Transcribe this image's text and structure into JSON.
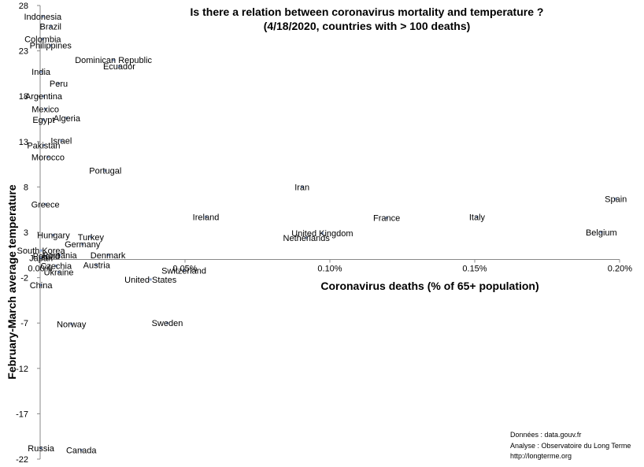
{
  "chart_data": {
    "type": "scatter",
    "title": "Is there a relation between coronavirus mortality and temperature ?",
    "subtitle": "(4/18/2020, countries with > 100 deaths)",
    "xlabel": "Coronavirus deaths (% of 65+ population)",
    "ylabel": "February-March average temperature",
    "xlim": [
      0,
      0.2
    ],
    "ylim": [
      -22,
      28
    ],
    "x_ticks": [
      0,
      0.05,
      0.1,
      0.15,
      0.2
    ],
    "x_tick_labels": [
      "0.00%",
      "0.05%",
      "0.10%",
      "0.15%",
      "0.20%"
    ],
    "y_ticks": [
      -22,
      -17,
      -12,
      -7,
      -2,
      3,
      8,
      13,
      18,
      23,
      28
    ],
    "y_tick_labels": [
      "-22",
      "-17",
      "-12",
      "-7",
      "-2",
      "3",
      "8",
      "13",
      "18",
      "23",
      "28"
    ],
    "points": [
      {
        "label": "Indonesia",
        "x": 0.0009,
        "y": 26.8
      },
      {
        "label": "Brazil",
        "x": 0.0036,
        "y": 25.7
      },
      {
        "label": "Colombia",
        "x": 0.0009,
        "y": 24.3
      },
      {
        "label": "Philippines",
        "x": 0.0036,
        "y": 23.6
      },
      {
        "label": "Dominican Republic",
        "x": 0.0253,
        "y": 22.0
      },
      {
        "label": "Ecuador",
        "x": 0.0273,
        "y": 21.3
      },
      {
        "label": "India",
        "x": 0.0003,
        "y": 20.7
      },
      {
        "label": "Peru",
        "x": 0.0064,
        "y": 19.4
      },
      {
        "label": "Argentina",
        "x": 0.0012,
        "y": 18.0
      },
      {
        "label": "Mexico",
        "x": 0.0018,
        "y": 16.6
      },
      {
        "label": "Algeria",
        "x": 0.0092,
        "y": 15.6
      },
      {
        "label": "Egypt",
        "x": 0.0012,
        "y": 15.4
      },
      {
        "label": "Israel",
        "x": 0.0073,
        "y": 13.1
      },
      {
        "label": "Pakistan",
        "x": 0.0012,
        "y": 12.6
      },
      {
        "label": "Morocco",
        "x": 0.0027,
        "y": 11.3
      },
      {
        "label": "Portugal",
        "x": 0.0225,
        "y": 9.8
      },
      {
        "label": "Iran",
        "x": 0.0904,
        "y": 8.0
      },
      {
        "label": "Spain",
        "x": 0.1987,
        "y": 6.7
      },
      {
        "label": "Greece",
        "x": 0.0018,
        "y": 6.1
      },
      {
        "label": "Ireland",
        "x": 0.0572,
        "y": 4.7
      },
      {
        "label": "France",
        "x": 0.1196,
        "y": 4.6
      },
      {
        "label": "Italy",
        "x": 0.1508,
        "y": 4.7
      },
      {
        "label": "United Kingdom",
        "x": 0.0974,
        "y": 2.9
      },
      {
        "label": "Belgium",
        "x": 0.1937,
        "y": 3.0
      },
      {
        "label": "Netherlands",
        "x": 0.0919,
        "y": 2.4
      },
      {
        "label": "Hungary",
        "x": 0.0046,
        "y": 2.7
      },
      {
        "label": "Turkey",
        "x": 0.0175,
        "y": 2.5
      },
      {
        "label": "Germany",
        "x": 0.0146,
        "y": 1.7
      },
      {
        "label": "South Korea",
        "x": 0.0003,
        "y": 1.0
      },
      {
        "label": "Denmark",
        "x": 0.0234,
        "y": 0.5
      },
      {
        "label": "Japan",
        "x": 0.0003,
        "y": 0.2
      },
      {
        "label": "Poland",
        "x": 0.0021,
        "y": 0.4
      },
      {
        "label": "Romania",
        "x": 0.0067,
        "y": 0.5
      },
      {
        "label": "Austria",
        "x": 0.0195,
        "y": -0.6
      },
      {
        "label": "Czechia",
        "x": 0.0055,
        "y": -0.7
      },
      {
        "label": "Switzerland",
        "x": 0.0496,
        "y": -1.2
      },
      {
        "label": "Ukraine",
        "x": 0.0064,
        "y": -1.4
      },
      {
        "label": "United States",
        "x": 0.0381,
        "y": -2.2
      },
      {
        "label": "China",
        "x": 0.0003,
        "y": -2.8
      },
      {
        "label": "Sweden",
        "x": 0.0439,
        "y": -7.0
      },
      {
        "label": "Norway",
        "x": 0.0108,
        "y": -7.1
      },
      {
        "label": "Russia",
        "x": 0.0003,
        "y": -20.8
      },
      {
        "label": "Canada",
        "x": 0.0142,
        "y": -21.0
      }
    ],
    "point_color": "#8aa0c8",
    "grid": false
  },
  "source_lines": [
    "Données : data.gouv.fr",
    "Analyse : Observatoire du Long Terme",
    "http://longterme.org"
  ]
}
